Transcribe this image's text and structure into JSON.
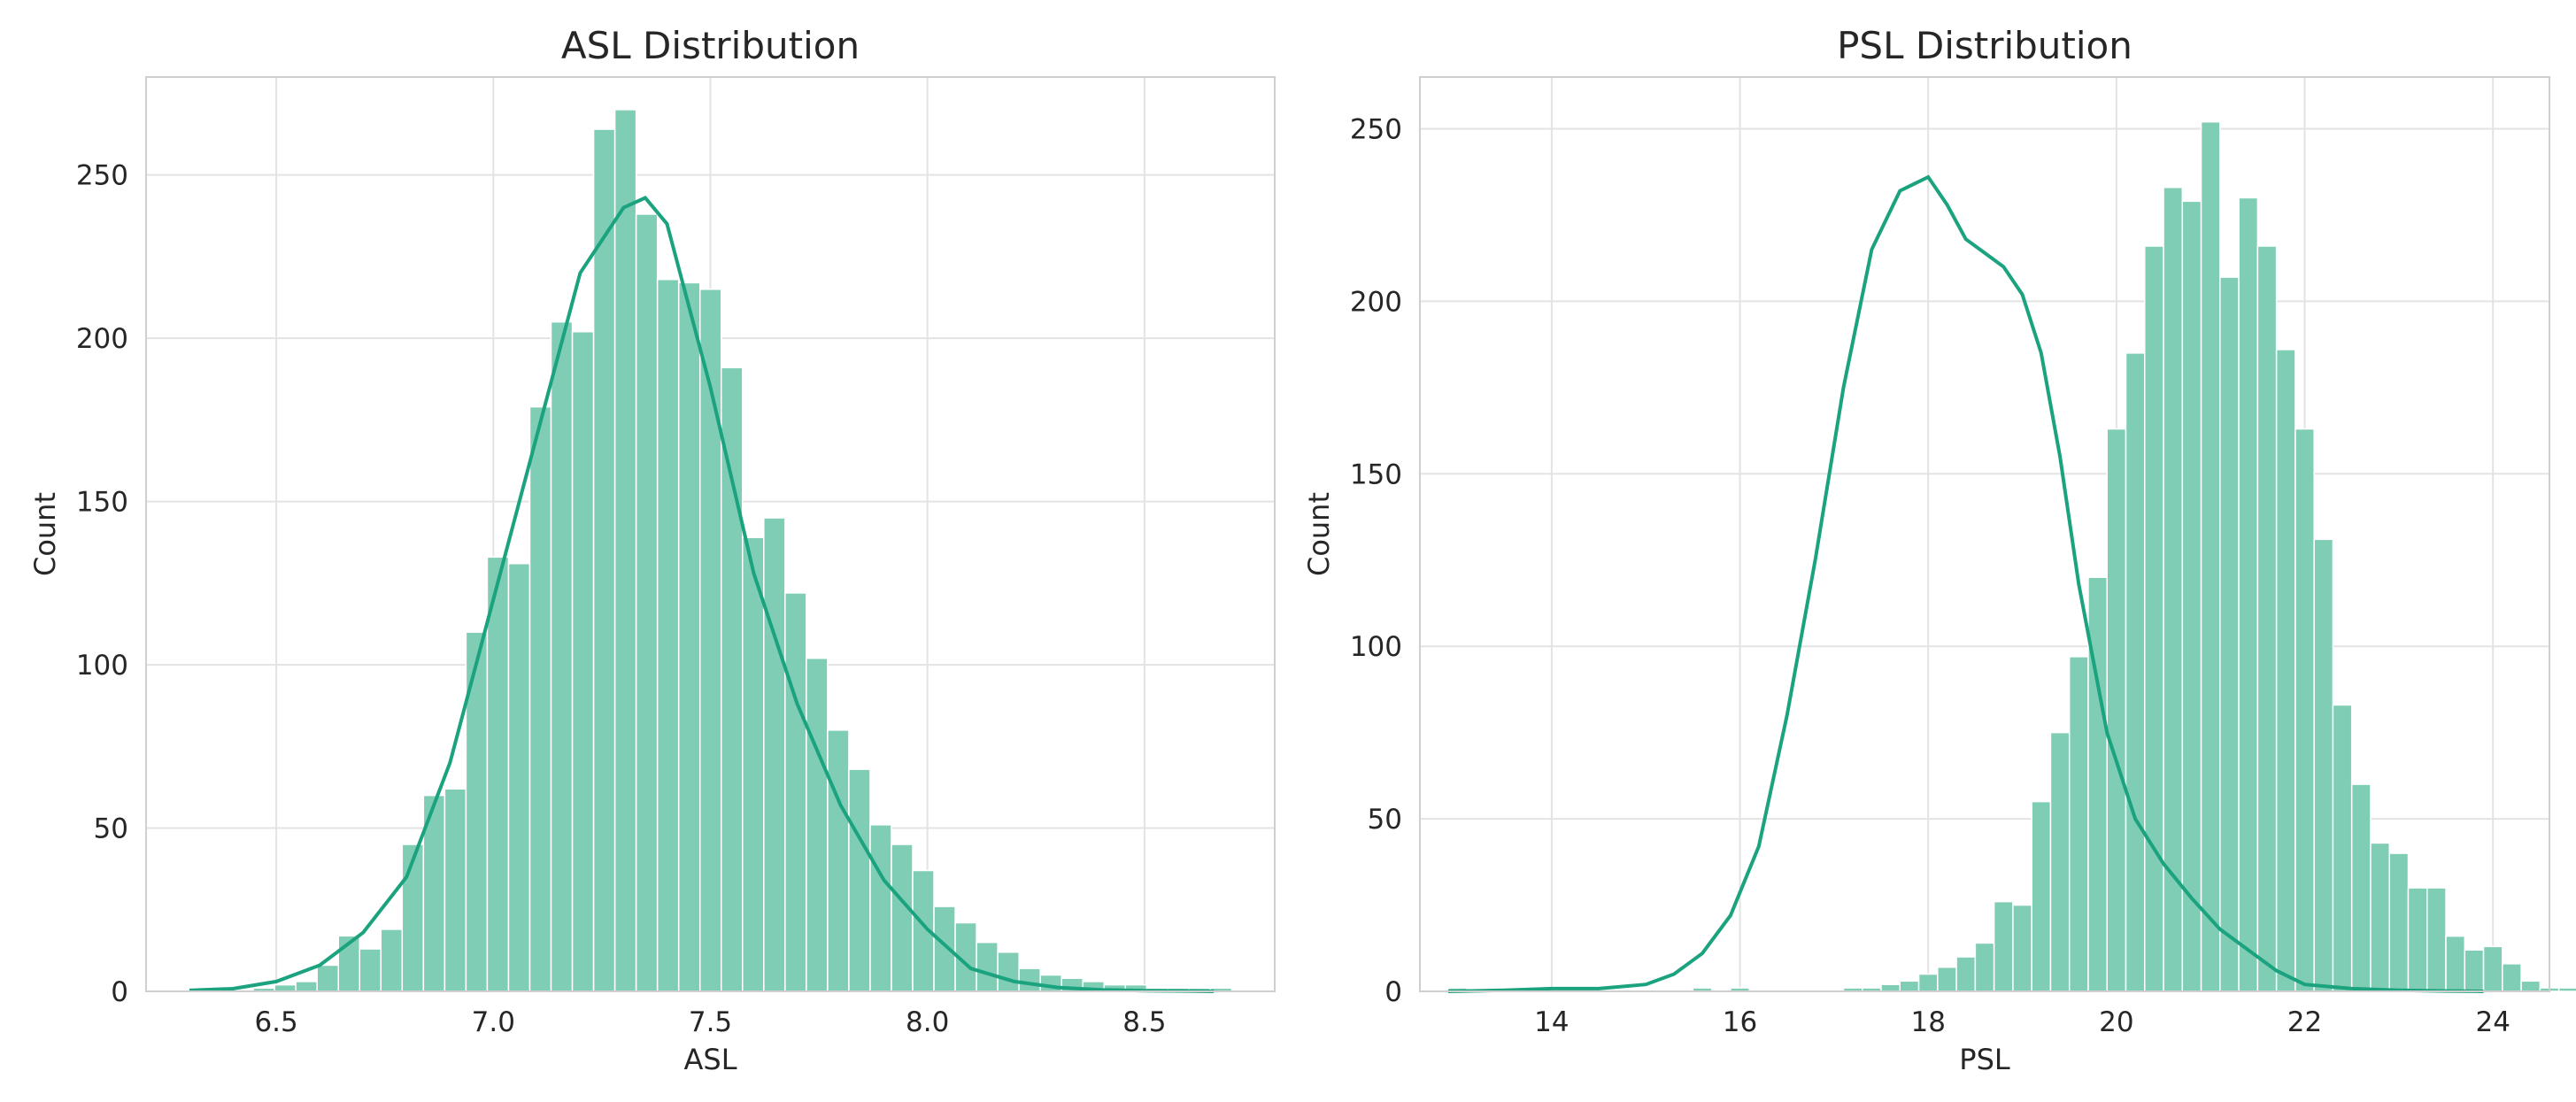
{
  "chart_data": [
    {
      "type": "histogram",
      "title": "ASL Distribution",
      "xlabel": "ASL",
      "ylabel": "Count",
      "xlim": [
        6.2,
        8.8
      ],
      "ylim": [
        0,
        280
      ],
      "xticks": [
        6.5,
        7.0,
        7.5,
        8.0,
        8.5
      ],
      "yticks": [
        0,
        50,
        100,
        150,
        200,
        250
      ],
      "xtick_labels": [
        "6.5",
        "7.0",
        "7.5",
        "8.0",
        "8.5"
      ],
      "ytick_labels": [
        "0",
        "50",
        "100",
        "150",
        "200",
        "250"
      ],
      "grid": true,
      "bin_start": 6.3,
      "bin_width": 0.049,
      "counts": [
        0,
        0,
        0,
        1,
        2,
        3,
        8,
        17,
        13,
        19,
        45,
        60,
        62,
        110,
        133,
        131,
        179,
        205,
        202,
        264,
        270,
        238,
        218,
        217,
        215,
        191,
        139,
        145,
        122,
        102,
        80,
        68,
        51,
        45,
        37,
        26,
        21,
        15,
        12,
        7,
        5,
        4,
        3,
        2,
        2,
        1,
        1,
        1,
        1
      ],
      "kde": {
        "x": [
          6.3,
          6.4,
          6.5,
          6.6,
          6.7,
          6.8,
          6.9,
          7.0,
          7.1,
          7.2,
          7.3,
          7.35,
          7.4,
          7.5,
          7.6,
          7.7,
          7.8,
          7.9,
          8.0,
          8.1,
          8.2,
          8.3,
          8.4,
          8.5,
          8.6,
          8.66
        ],
        "y": [
          0.3,
          0.8,
          3,
          8,
          18,
          35,
          70,
          120,
          170,
          220,
          240,
          243,
          235,
          185,
          128,
          88,
          57,
          34,
          19,
          7,
          3,
          1.2,
          0.5,
          0.2,
          0.1,
          0
        ]
      }
    },
    {
      "type": "histogram",
      "title": "PSL Distribution",
      "xlabel": "PSL",
      "ylabel": "Count",
      "xlim": [
        12.6,
        24.6
      ],
      "ylim": [
        0,
        265
      ],
      "xticks": [
        14,
        16,
        18,
        20,
        22,
        24
      ],
      "yticks": [
        0,
        50,
        100,
        150,
        200,
        250
      ],
      "xtick_labels": [
        "14",
        "16",
        "18",
        "20",
        "22",
        "24"
      ],
      "ytick_labels": [
        "0",
        "50",
        "100",
        "150",
        "200",
        "250"
      ],
      "grid": true,
      "bin_start": 12.9,
      "bin_width": 0.2,
      "counts": [
        1,
        0,
        0,
        0,
        0,
        0,
        0,
        0,
        0,
        0,
        0,
        0,
        0,
        1,
        0,
        1,
        0,
        0,
        0,
        0,
        0,
        1,
        1,
        2,
        3,
        5,
        7,
        10,
        14,
        26,
        25,
        55,
        75,
        97,
        120,
        163,
        185,
        216,
        233,
        229,
        252,
        207,
        230,
        216,
        186,
        163,
        131,
        83,
        60,
        43,
        40,
        30,
        30,
        16,
        12,
        13,
        8,
        3,
        1,
        1,
        1,
        0,
        0,
        0,
        0,
        0,
        0,
        0,
        0,
        0,
        0,
        0,
        0,
        0,
        0,
        0,
        0,
        0,
        0,
        0,
        0,
        0,
        0,
        0,
        0,
        1
      ],
      "kde": {
        "x": [
          12.9,
          13.5,
          14,
          14.5,
          15,
          15.3,
          15.6,
          15.9,
          16.2,
          16.5,
          16.8,
          17.1,
          17.4,
          17.7,
          18.0,
          18.2,
          18.4,
          18.6,
          18.8,
          19.0,
          19.2,
          19.4,
          19.6,
          19.9,
          20.2,
          20.5,
          20.8,
          21.1,
          21.4,
          21.7,
          22.0,
          22.5,
          23.0,
          23.5,
          23.9
        ],
        "y": [
          0,
          0.3,
          0.8,
          0.8,
          2,
          5,
          11,
          22,
          42,
          80,
          125,
          175,
          215,
          232,
          236,
          228,
          218,
          214,
          210,
          202,
          185,
          155,
          118,
          75,
          50,
          37,
          27,
          18,
          12,
          6,
          2,
          0.8,
          0.3,
          0.1,
          0
        ]
      }
    }
  ]
}
